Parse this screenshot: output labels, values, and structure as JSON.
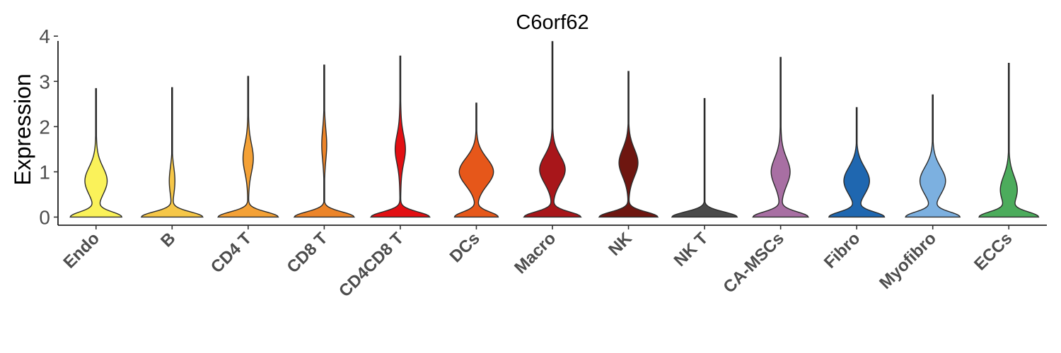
{
  "chart_data": {
    "type": "violin",
    "title": "C6orf62",
    "ylabel": "Expression",
    "xlabel": "",
    "ylim": [
      -0.18,
      4.05
    ],
    "yticks": [
      "0",
      "1",
      "2",
      "3",
      "4"
    ],
    "grid": false,
    "legend": "none",
    "categories": [
      {
        "name": "Endo",
        "color": "#FAF25A",
        "max": 2.84,
        "base": 0.75,
        "mode": 0.8,
        "modeW": 0.3,
        "spread": 0.95
      },
      {
        "name": "B",
        "color": "#F6C748",
        "max": 2.86,
        "base": 0.92,
        "mode": 0.8,
        "modeW": 0.05,
        "spread": 0.45
      },
      {
        "name": "CD4 T",
        "color": "#F4A136",
        "max": 3.11,
        "base": 0.9,
        "mode": 1.3,
        "modeW": 0.12,
        "spread": 0.9
      },
      {
        "name": "CD8 T",
        "color": "#EC8429",
        "max": 3.36,
        "base": 0.9,
        "mode": 1.6,
        "modeW": 0.04,
        "spread": 0.7
      },
      {
        "name": "CD4CD8 T",
        "color": "#E20F13",
        "max": 3.56,
        "base": 0.88,
        "mode": 1.5,
        "modeW": 0.12,
        "spread": 1.05
      },
      {
        "name": "DCs",
        "color": "#E6571A",
        "max": 2.52,
        "base": 0.65,
        "mode": 1.0,
        "modeW": 0.48,
        "spread": 0.75
      },
      {
        "name": "Macro",
        "color": "#A8161A",
        "max": 3.88,
        "base": 0.85,
        "mode": 1.05,
        "modeW": 0.35,
        "spread": 0.8
      },
      {
        "name": "NK",
        "color": "#6E1610",
        "max": 3.22,
        "base": 0.88,
        "mode": 1.2,
        "modeW": 0.25,
        "spread": 0.75
      },
      {
        "name": "NK T",
        "color": "#4A4A4A",
        "max": 2.62,
        "base": 0.98,
        "mode": 1.5,
        "modeW": 0.0,
        "spread": 0.6
      },
      {
        "name": "CA-MSCs",
        "color": "#A86FA3",
        "max": 3.53,
        "base": 0.82,
        "mode": 1.0,
        "modeW": 0.25,
        "spread": 0.95
      },
      {
        "name": "Fibro",
        "color": "#1F67B0",
        "max": 2.42,
        "base": 0.82,
        "mode": 0.8,
        "modeW": 0.35,
        "spread": 0.6
      },
      {
        "name": "Myofibro",
        "color": "#7CB0E0",
        "max": 2.7,
        "base": 0.8,
        "mode": 0.8,
        "modeW": 0.35,
        "spread": 0.7
      },
      {
        "name": "ECCs",
        "color": "#4CAC5C",
        "max": 3.4,
        "base": 0.85,
        "mode": 0.6,
        "modeW": 0.22,
        "spread": 0.7
      }
    ]
  }
}
